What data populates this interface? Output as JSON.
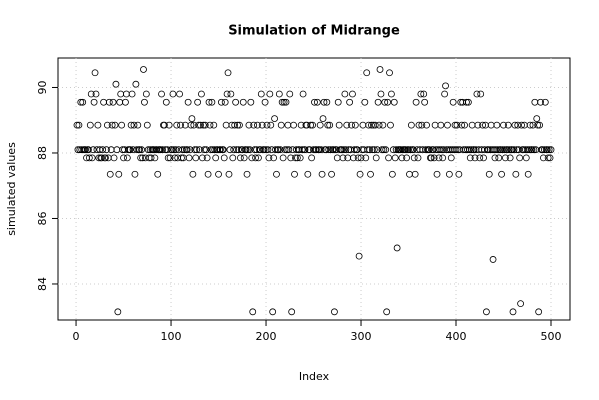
{
  "chart_data": {
    "type": "scatter",
    "title": "Simulation of Midrange",
    "x_label": "Index",
    "y_label": "simulated values",
    "xlim": [
      -19,
      520
    ],
    "ylim": [
      82.9,
      90.9
    ],
    "xticks": [
      0,
      100,
      200,
      300,
      400,
      500
    ],
    "yticks": [
      84,
      86,
      88,
      90
    ],
    "grid": true,
    "color": "#000000",
    "x": [
      1,
      2,
      3,
      4,
      5,
      6,
      7,
      8,
      9,
      10,
      11,
      12,
      13,
      14,
      15,
      16,
      17,
      18,
      19,
      20,
      21,
      22,
      23,
      24,
      25,
      26,
      27,
      28,
      29,
      30,
      31,
      32,
      33,
      34,
      35,
      36,
      37,
      38,
      39,
      40,
      41,
      42,
      43,
      44,
      45,
      46,
      47,
      48,
      49,
      50,
      51,
      52,
      53,
      54,
      55,
      56,
      57,
      58,
      59,
      60,
      61,
      62,
      63,
      64,
      65,
      66,
      67,
      68,
      69,
      70,
      71,
      72,
      73,
      74,
      75,
      76,
      77,
      78,
      79,
      80,
      81,
      82,
      83,
      84,
      85,
      86,
      87,
      88,
      89,
      90,
      91,
      92,
      93,
      94,
      95,
      96,
      97,
      98,
      99,
      100,
      101,
      102,
      103,
      104,
      105,
      106,
      107,
      108,
      109,
      110,
      111,
      112,
      113,
      114,
      115,
      116,
      117,
      118,
      119,
      120,
      121,
      122,
      123,
      124,
      125,
      126,
      127,
      128,
      129,
      130,
      131,
      132,
      133,
      134,
      135,
      136,
      137,
      138,
      139,
      140,
      141,
      142,
      143,
      144,
      145,
      146,
      147,
      148,
      149,
      150,
      151,
      152,
      153,
      154,
      155,
      156,
      157,
      158,
      159,
      160,
      161,
      162,
      163,
      164,
      165,
      166,
      167,
      168,
      169,
      170,
      171,
      172,
      173,
      174,
      175,
      176,
      177,
      178,
      179,
      180,
      181,
      182,
      183,
      184,
      185,
      186,
      187,
      188,
      189,
      190,
      191,
      192,
      193,
      194,
      195,
      196,
      197,
      198,
      199,
      200,
      201,
      202,
      203,
      204,
      205,
      206,
      207,
      208,
      209,
      210,
      211,
      212,
      213,
      214,
      215,
      216,
      217,
      218,
      219,
      220,
      221,
      222,
      223,
      224,
      225,
      226,
      227,
      228,
      229,
      230,
      231,
      232,
      233,
      234,
      235,
      236,
      237,
      238,
      239,
      240,
      241,
      242,
      243,
      244,
      245,
      246,
      247,
      248,
      249,
      250,
      251,
      252,
      253,
      254,
      255,
      256,
      257,
      258,
      259,
      260,
      261,
      262,
      263,
      264,
      265,
      266,
      267,
      268,
      269,
      270,
      271,
      272,
      273,
      274,
      275,
      276,
      277,
      278,
      279,
      280,
      281,
      282,
      283,
      284,
      285,
      286,
      287,
      288,
      289,
      290,
      291,
      292,
      293,
      294,
      295,
      296,
      297,
      298,
      299,
      300,
      301,
      302,
      303,
      304,
      305,
      306,
      307,
      308,
      309,
      310,
      311,
      312,
      313,
      314,
      315,
      316,
      317,
      318,
      319,
      320,
      321,
      322,
      323,
      324,
      325,
      326,
      327,
      328,
      329,
      330,
      331,
      332,
      333,
      334,
      335,
      336,
      337,
      338,
      339,
      340,
      341,
      342,
      343,
      344,
      345,
      346,
      347,
      348,
      349,
      350,
      351,
      352,
      353,
      354,
      355,
      356,
      357,
      358,
      359,
      360,
      361,
      362,
      363,
      364,
      365,
      366,
      367,
      368,
      369,
      370,
      371,
      372,
      373,
      374,
      375,
      376,
      377,
      378,
      379,
      380,
      381,
      382,
      383,
      384,
      385,
      386,
      387,
      388,
      389,
      390,
      391,
      392,
      393,
      394,
      395,
      396,
      397,
      398,
      399,
      400,
      401,
      402,
      403,
      404,
      405,
      406,
      407,
      408,
      409,
      410,
      411,
      412,
      413,
      414,
      415,
      416,
      417,
      418,
      419,
      420,
      421,
      422,
      423,
      424,
      425,
      426,
      427,
      428,
      429,
      430,
      431,
      432,
      433,
      434,
      435,
      436,
      437,
      438,
      439,
      440,
      441,
      442,
      443,
      444,
      445,
      446,
      447,
      448,
      449,
      450,
      451,
      452,
      453,
      454,
      455,
      456,
      457,
      458,
      459,
      460,
      461,
      462,
      463,
      464,
      465,
      466,
      467,
      468,
      469,
      470,
      471,
      472,
      473,
      474,
      475,
      476,
      477,
      478,
      479,
      480,
      481,
      482,
      483,
      484,
      485,
      486,
      487,
      488,
      489,
      490,
      491,
      492,
      493,
      494,
      495,
      496,
      497,
      498,
      499,
      500
    ],
    "values": [
      88.85,
      88.1,
      88.85,
      88.1,
      89.55,
      88.1,
      89.55,
      88.1,
      88.1,
      88.1,
      87.85,
      88.1,
      88.1,
      87.85,
      88.85,
      89.8,
      87.85,
      88.1,
      89.55,
      90.45,
      89.8,
      88.1,
      88.85,
      87.85,
      88.1,
      87.85,
      87.85,
      88.1,
      89.55,
      87.85,
      87.85,
      88.1,
      88.85,
      87.85,
      89.55,
      87.35,
      88.1,
      88.85,
      89.55,
      87.85,
      88.85,
      90.1,
      88.1,
      83.15,
      87.35,
      89.55,
      89.8,
      88.85,
      88.1,
      87.85,
      88.1,
      89.55,
      89.8,
      87.85,
      88.1,
      88.1,
      88.1,
      88.85,
      89.8,
      88.1,
      88.85,
      87.35,
      90.1,
      88.1,
      88.85,
      88.1,
      88.1,
      87.85,
      88.1,
      87.85,
      90.55,
      89.55,
      87.85,
      89.8,
      88.85,
      88.1,
      87.85,
      88.1,
      87.85,
      88.1,
      88.1,
      88.1,
      87.85,
      88.1,
      88.1,
      87.35,
      88.1,
      88.1,
      88.1,
      89.8,
      88.1,
      88.85,
      88.85,
      88.1,
      89.55,
      88.1,
      87.85,
      88.85,
      87.85,
      88.1,
      88.1,
      89.8,
      88.1,
      87.85,
      88.1,
      88.85,
      87.85,
      88.1,
      89.8,
      88.85,
      87.85,
      88.1,
      87.85,
      88.1,
      88.85,
      88.1,
      88.1,
      89.55,
      87.85,
      88.1,
      88.85,
      89.05,
      87.35,
      88.85,
      88.1,
      87.85,
      88.1,
      89.55,
      88.85,
      88.1,
      88.85,
      89.8,
      87.85,
      88.85,
      88.1,
      88.85,
      88.1,
      87.85,
      87.35,
      89.55,
      88.85,
      88.1,
      89.55,
      88.1,
      88.85,
      88.1,
      87.85,
      88.1,
      88.1,
      87.35,
      88.1,
      88.1,
      89.55,
      88.1,
      88.1,
      87.85,
      89.55,
      88.85,
      89.8,
      90.45,
      87.35,
      88.1,
      89.8,
      88.85,
      87.85,
      88.1,
      88.85,
      89.55,
      88.1,
      88.85,
      88.1,
      88.85,
      87.85,
      88.1,
      88.1,
      89.55,
      87.85,
      88.1,
      88.1,
      87.35,
      88.1,
      88.85,
      88.1,
      89.55,
      87.85,
      83.15,
      88.85,
      88.1,
      87.85,
      88.1,
      88.85,
      87.85,
      88.1,
      88.1,
      89.8,
      88.85,
      88.1,
      88.1,
      89.55,
      88.1,
      88.85,
      88.1,
      87.85,
      89.8,
      88.85,
      88.1,
      83.15,
      87.85,
      89.05,
      88.1,
      87.35,
      88.1,
      88.1,
      89.8,
      88.1,
      88.85,
      89.55,
      87.85,
      89.55,
      88.1,
      89.55,
      88.1,
      88.85,
      88.1,
      89.8,
      87.85,
      83.15,
      88.1,
      88.85,
      87.35,
      87.85,
      88.1,
      87.85,
      88.1,
      88.1,
      87.85,
      88.85,
      88.1,
      89.8,
      88.1,
      88.1,
      88.85,
      88.85,
      87.35,
      88.1,
      88.1,
      88.85,
      87.85,
      88.85,
      88.1,
      89.55,
      88.1,
      88.1,
      89.55,
      88.1,
      88.1,
      88.85,
      88.1,
      87.35,
      89.05,
      89.55,
      88.1,
      88.1,
      89.55,
      88.85,
      88.1,
      88.85,
      88.1,
      87.35,
      88.1,
      88.1,
      83.15,
      88.1,
      88.1,
      87.85,
      89.55,
      88.85,
      88.1,
      88.1,
      88.1,
      87.85,
      88.1,
      89.8,
      88.1,
      88.85,
      87.85,
      88.1,
      89.55,
      88.1,
      88.85,
      89.8,
      87.85,
      88.1,
      88.85,
      88.1,
      88.1,
      87.85,
      84.85,
      87.35,
      87.85,
      88.1,
      88.85,
      88.1,
      89.55,
      87.85,
      90.45,
      88.1,
      88.85,
      88.1,
      87.35,
      88.85,
      88.1,
      88.85,
      88.1,
      88.85,
      87.85,
      88.1,
      89.55,
      88.85,
      90.55,
      89.8,
      88.1,
      88.85,
      88.1,
      89.55,
      88.1,
      83.15,
      89.55,
      87.85,
      90.45,
      88.85,
      89.8,
      87.35,
      88.1,
      89.55,
      87.85,
      88.1,
      85.1,
      88.1,
      88.1,
      88.1,
      88.1,
      87.85,
      88.1,
      88.1,
      88.1,
      88.1,
      87.85,
      88.1,
      88.1,
      87.35,
      88.1,
      88.85,
      88.1,
      88.1,
      87.85,
      87.35,
      89.55,
      88.1,
      87.85,
      88.85,
      88.1,
      89.8,
      88.85,
      88.1,
      89.8,
      89.55,
      88.1,
      88.85,
      88.1,
      88.1,
      88.1,
      87.85,
      87.85,
      88.1,
      88.1,
      87.85,
      88.85,
      88.1,
      87.35,
      88.1,
      87.85,
      88.1,
      88.85,
      88.1,
      87.85,
      88.1,
      89.8,
      90.05,
      88.1,
      88.85,
      88.1,
      87.35,
      88.1,
      87.85,
      88.1,
      89.55,
      88.1,
      88.85,
      88.1,
      88.85,
      88.1,
      87.35,
      88.1,
      89.55,
      88.85,
      89.55,
      88.1,
      88.85,
      88.1,
      89.55,
      88.1,
      89.55,
      88.1,
      87.85,
      88.1,
      88.85,
      88.1,
      88.1,
      87.85,
      88.1,
      89.8,
      88.85,
      88.1,
      87.85,
      89.8,
      88.1,
      88.85,
      87.85,
      88.1,
      88.85,
      83.15,
      88.1,
      88.1,
      87.35,
      88.1,
      88.85,
      88.1,
      84.75,
      88.1,
      87.85,
      88.1,
      88.85,
      88.1,
      87.85,
      88.1,
      88.1,
      87.35,
      88.1,
      88.85,
      88.1,
      87.85,
      88.1,
      88.1,
      88.85,
      88.1,
      87.85,
      88.1,
      88.1,
      83.15,
      88.1,
      88.85,
      87.35,
      88.1,
      88.85,
      88.1,
      87.85,
      83.4,
      88.85,
      88.1,
      88.1,
      88.85,
      88.1,
      87.85,
      88.1,
      87.35,
      88.1,
      88.85,
      88.1,
      88.1,
      88.85,
      88.1,
      89.55,
      88.1,
      89.05,
      88.85,
      83.15,
      88.85,
      89.55,
      88.1,
      88.1,
      87.85,
      88.1,
      89.55,
      88.1,
      88.1,
      87.85,
      88.1,
      87.85,
      88.1
    ]
  }
}
